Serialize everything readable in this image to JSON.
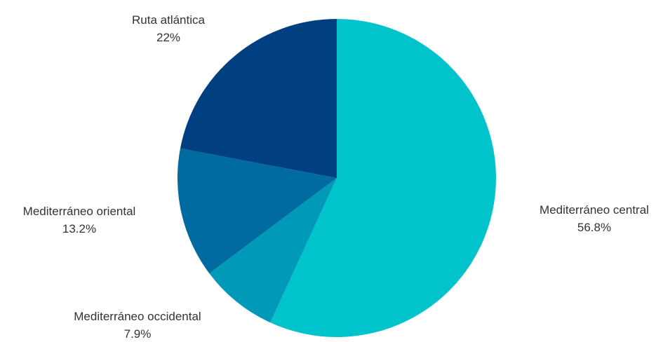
{
  "chart_data": {
    "type": "pie",
    "title": "",
    "legend": "none",
    "slices": [
      {
        "name": "Mediterráneo central",
        "value": 56.8,
        "label": "56.8%",
        "color": "#00c3cc"
      },
      {
        "name": "Mediterráneo occidental",
        "value": 7.9,
        "label": "7.9%",
        "color": "#0099b8"
      },
      {
        "name": "Mediterráneo oriental",
        "value": 13.2,
        "label": "13.2%",
        "color": "#006ba0"
      },
      {
        "name": "Ruta atlántica",
        "value": 22,
        "label": "22%",
        "color": "#003f80"
      }
    ]
  }
}
